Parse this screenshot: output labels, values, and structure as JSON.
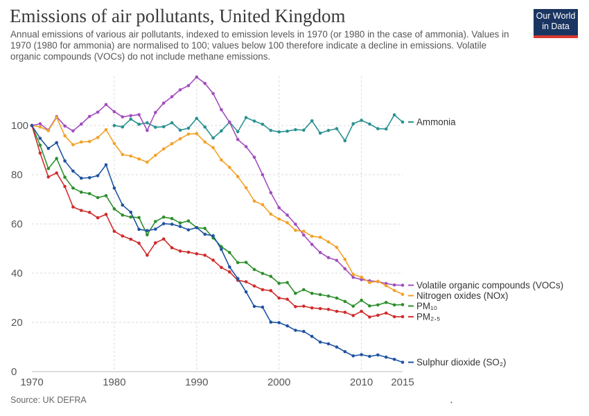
{
  "header": {
    "title": "Emissions of air pollutants, United Kingdom",
    "subtitle": "Annual emissions of various air pollutants, indexed to emission levels in 1970 (or 1980 in the case of ammonia). Values in 1970 (1980 for ammonia) are normalised to 100; values below 100 therefore indicate a decline in emissions. Volatile organic compounds (VOCs) do not include methane emissions."
  },
  "logo": {
    "line1": "Our World",
    "line2": "in Data"
  },
  "footer": {
    "source": "Source: UK DEFRA",
    "mark": "•"
  },
  "chart_data": {
    "type": "line",
    "title": "Emissions of air pollutants, United Kingdom",
    "xlim": [
      1970,
      2015
    ],
    "ylim": [
      0,
      120
    ],
    "x_ticks": [
      1970,
      1980,
      1990,
      2000,
      2010,
      2015
    ],
    "y_ticks": [
      0,
      20,
      40,
      60,
      80,
      100
    ],
    "grid": {
      "horizontal": true,
      "vertical": true,
      "style": "dashed"
    },
    "legend_placement": "right, at line ends",
    "series": [
      {
        "name": "Ammonia",
        "color": "#2a9191",
        "x": [
          1980,
          1981,
          1982,
          1983,
          1984,
          1985,
          1986,
          1987,
          1988,
          1989,
          1990,
          1991,
          1992,
          1993,
          1994,
          1995,
          1996,
          1997,
          1998,
          1999,
          2000,
          2001,
          2002,
          2003,
          2004,
          2005,
          2006,
          2007,
          2008,
          2009,
          2010,
          2011,
          2012,
          2013,
          2014,
          2015
        ],
        "y": [
          100,
          99.4,
          102.6,
          100.5,
          101.1,
          99.3,
          99.5,
          101.1,
          98.1,
          98.9,
          102.9,
          99.4,
          94.9,
          97.8,
          101.4,
          97.5,
          103.2,
          101.8,
          100.5,
          98.0,
          97.4,
          97.7,
          98.3,
          98.1,
          101.9,
          96.9,
          98.0,
          98.7,
          93.8,
          100.7,
          102.1,
          100.6,
          98.7,
          98.6,
          104.3,
          101.4
        ]
      },
      {
        "name": "Volatile organic compounds (VOCs)",
        "color": "#a24dbf",
        "x": [
          1970,
          1971,
          1972,
          1973,
          1974,
          1975,
          1976,
          1977,
          1978,
          1979,
          1980,
          1981,
          1982,
          1983,
          1984,
          1985,
          1986,
          1987,
          1988,
          1989,
          1990,
          1991,
          1992,
          1993,
          1994,
          1995,
          1996,
          1997,
          1998,
          1999,
          2000,
          2001,
          2002,
          2003,
          2004,
          2005,
          2006,
          2007,
          2008,
          2009,
          2010,
          2011,
          2012,
          2013,
          2014,
          2015
        ],
        "y": [
          100,
          100.7,
          98.1,
          103.6,
          99.8,
          97.8,
          100.6,
          103.7,
          105.4,
          108.5,
          105.6,
          103.5,
          104.0,
          104.4,
          98.0,
          105.3,
          109.1,
          111.7,
          114.5,
          116.2,
          119.7,
          117.1,
          113.0,
          106.4,
          101.3,
          94.3,
          91.4,
          87.1,
          80.0,
          72.7,
          66.6,
          63.6,
          59.9,
          55.5,
          51.7,
          48.4,
          46.3,
          45.2,
          41.8,
          38.3,
          37.4,
          36.9,
          36.6,
          35.8,
          35.2,
          35.1
        ]
      },
      {
        "name": "Nitrogen oxides (NOx)",
        "color": "#f2a128",
        "x": [
          1970,
          1971,
          1972,
          1973,
          1974,
          1975,
          1976,
          1977,
          1978,
          1979,
          1980,
          1981,
          1982,
          1983,
          1984,
          1985,
          1986,
          1987,
          1988,
          1989,
          1990,
          1991,
          1992,
          1993,
          1994,
          1995,
          1996,
          1997,
          1998,
          1999,
          2000,
          2001,
          2002,
          2003,
          2004,
          2005,
          2006,
          2007,
          2008,
          2009,
          2010,
          2011,
          2012,
          2013,
          2014,
          2015
        ],
        "y": [
          100,
          99.4,
          97.9,
          103.3,
          95.8,
          92.2,
          93.3,
          93.5,
          95.1,
          98.3,
          92.7,
          88.2,
          87.6,
          86.4,
          85.1,
          87.9,
          90.5,
          92.6,
          94.6,
          96.5,
          96.7,
          93.3,
          91.0,
          86.0,
          83.0,
          79.2,
          74.7,
          69.3,
          67.8,
          64.0,
          62.0,
          60.5,
          57.4,
          57.0,
          55.0,
          54.6,
          52.7,
          50.5,
          45.6,
          39.5,
          38.4,
          36.2,
          36.7,
          34.9,
          33.0,
          31.4
        ]
      },
      {
        "name": "PM₁₀",
        "color": "#2c8f2c",
        "x": [
          1970,
          1971,
          1972,
          1973,
          1974,
          1975,
          1976,
          1977,
          1978,
          1979,
          1980,
          1981,
          1982,
          1983,
          1984,
          1985,
          1986,
          1987,
          1988,
          1989,
          1990,
          1991,
          1992,
          1993,
          1994,
          1995,
          1996,
          1997,
          1998,
          1999,
          2000,
          2001,
          2002,
          2003,
          2004,
          2005,
          2006,
          2007,
          2008,
          2009,
          2010,
          2011,
          2012,
          2013,
          2014,
          2015
        ],
        "y": [
          100,
          92.0,
          82.5,
          86.6,
          79.0,
          74.6,
          72.9,
          72.3,
          70.7,
          71.5,
          66.1,
          63.6,
          62.8,
          62.6,
          55.6,
          61.0,
          62.8,
          62.2,
          60.4,
          61.2,
          58.5,
          58.2,
          54.3,
          50.8,
          48.4,
          44.3,
          44.4,
          41.5,
          39.9,
          38.7,
          35.9,
          36.2,
          31.8,
          33.3,
          31.8,
          31.3,
          30.7,
          29.9,
          28.5,
          26.6,
          29.0,
          26.7,
          27.1,
          28.1,
          27.1,
          27.2
        ]
      },
      {
        "name": "PM₂.₅",
        "color": "#d02b2b",
        "x": [
          1970,
          1971,
          1972,
          1973,
          1974,
          1975,
          1976,
          1977,
          1978,
          1979,
          1980,
          1981,
          1982,
          1983,
          1984,
          1985,
          1986,
          1987,
          1988,
          1989,
          1990,
          1991,
          1992,
          1993,
          1994,
          1995,
          1996,
          1997,
          1998,
          1999,
          2000,
          2001,
          2002,
          2003,
          2004,
          2005,
          2006,
          2007,
          2008,
          2009,
          2010,
          2011,
          2012,
          2013,
          2014,
          2015
        ],
        "y": [
          100,
          88.8,
          79.1,
          80.7,
          75.2,
          66.9,
          65.5,
          64.7,
          62.5,
          63.9,
          57.0,
          55.1,
          53.8,
          52.2,
          47.3,
          52.3,
          53.9,
          50.3,
          49.0,
          48.5,
          47.9,
          47.3,
          45.3,
          42.3,
          40.5,
          37.1,
          36.5,
          34.8,
          33.3,
          32.9,
          29.9,
          29.4,
          26.4,
          26.6,
          25.9,
          25.6,
          25.3,
          24.5,
          24.1,
          22.8,
          24.5,
          22.2,
          22.9,
          23.8,
          22.3,
          22.3
        ]
      },
      {
        "name": "Sulphur dioxide (SO₂)",
        "color": "#1d53a2",
        "x": [
          1970,
          1971,
          1972,
          1973,
          1974,
          1975,
          1976,
          1977,
          1978,
          1979,
          1980,
          1981,
          1982,
          1983,
          1984,
          1985,
          1986,
          1987,
          1988,
          1989,
          1990,
          1991,
          1992,
          1993,
          1994,
          1995,
          1996,
          1997,
          1998,
          1999,
          2000,
          2001,
          2002,
          2003,
          2004,
          2005,
          2006,
          2007,
          2008,
          2009,
          2010,
          2011,
          2012,
          2013,
          2014,
          2015
        ],
        "y": [
          100,
          94.8,
          90.7,
          93.0,
          85.6,
          81.5,
          78.6,
          78.8,
          79.6,
          84.0,
          74.6,
          67.7,
          64.8,
          57.8,
          57.3,
          57.9,
          60.1,
          59.9,
          59.0,
          57.6,
          58.5,
          55.8,
          55.2,
          49.7,
          42.5,
          37.8,
          32.4,
          26.5,
          26.2,
          20.1,
          19.9,
          18.6,
          16.8,
          16.3,
          14.3,
          12.0,
          11.3,
          10.0,
          8.1,
          6.4,
          6.9,
          6.2,
          6.8,
          5.9,
          5.0,
          3.8
        ]
      }
    ]
  }
}
